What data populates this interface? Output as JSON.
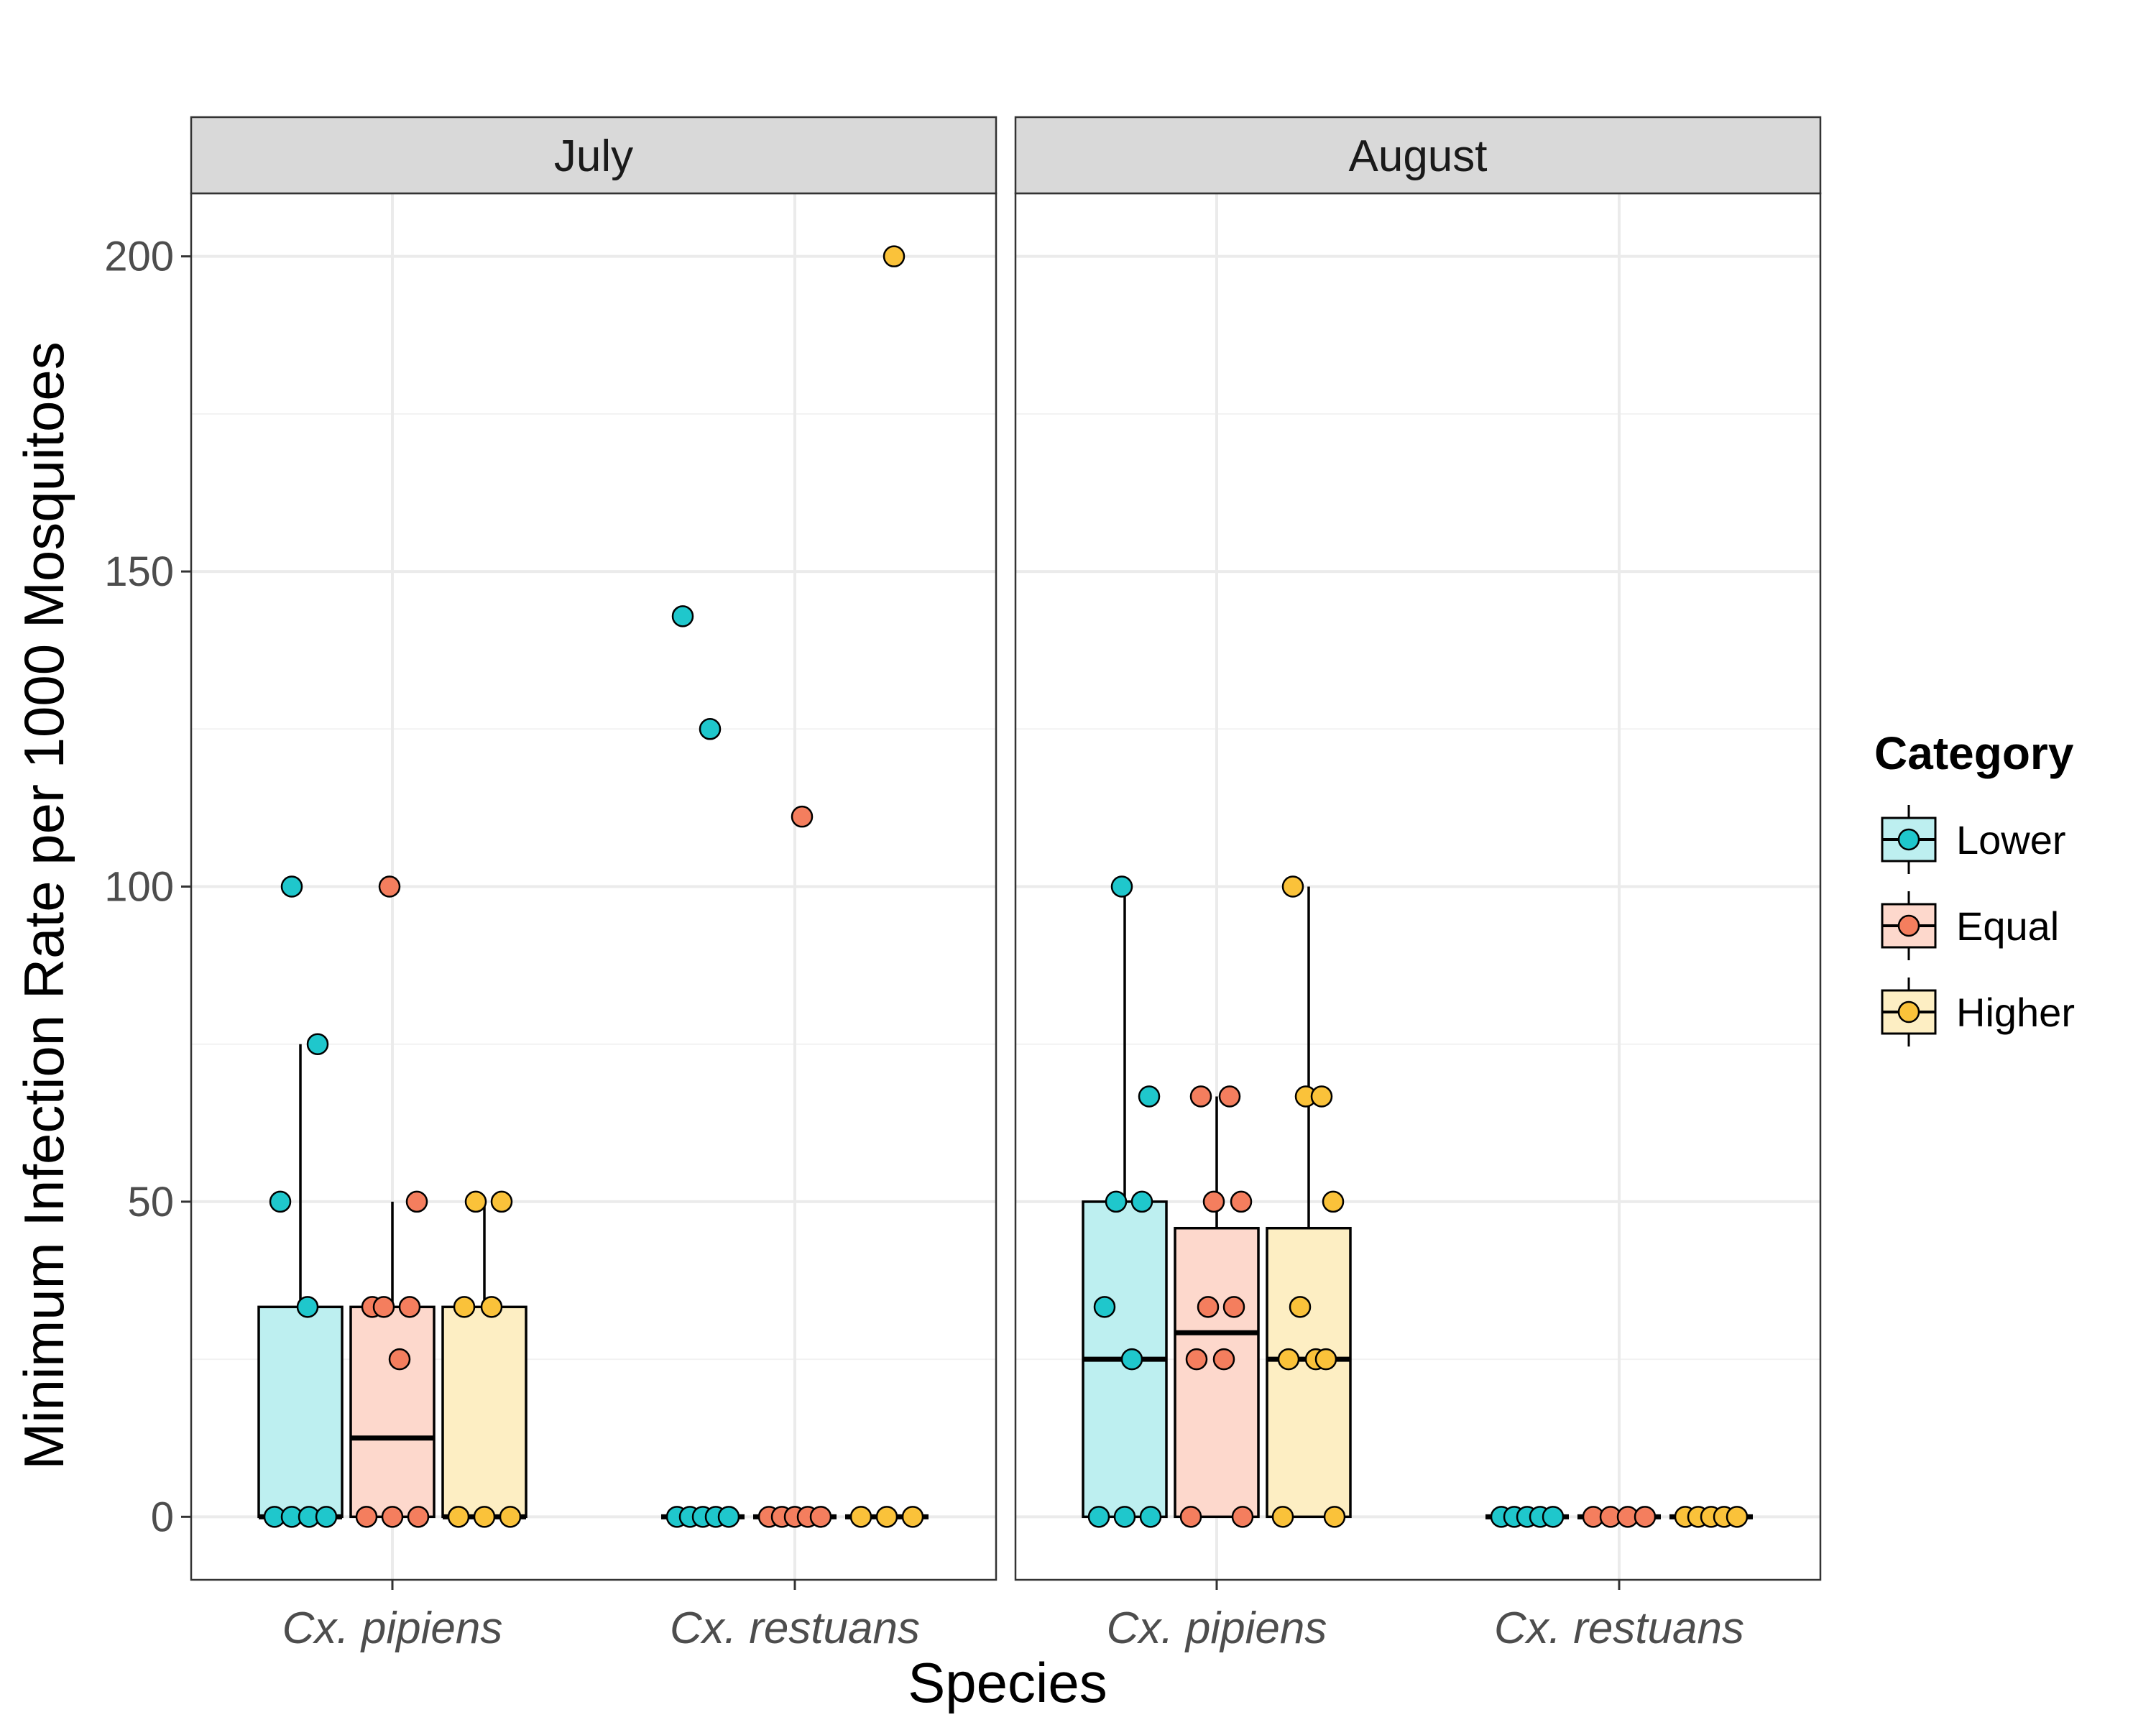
{
  "chart_data": {
    "type": "box",
    "xlabel": "Species",
    "ylabel": "Minimum Infection Rate per 1000 Mosquitoes",
    "ylim": [
      -10,
      210
    ],
    "yticks": [
      0,
      50,
      100,
      150,
      200
    ],
    "grid": true,
    "legend": {
      "title": "Category",
      "placement": "right",
      "entries": [
        {
          "name": "Lower",
          "fill": "#bdeff0",
          "point": "#1fc7cc"
        },
        {
          "name": "Equal",
          "fill": "#fdd8cc",
          "point": "#f47e5e"
        },
        {
          "name": "Higher",
          "fill": "#fdeec3",
          "point": "#fac23a"
        }
      ]
    },
    "species": [
      "Cx. pipiens",
      "Cx. restuans"
    ],
    "panels": [
      {
        "label": "July",
        "groups": [
          {
            "species": "Cx. pipiens",
            "boxes": [
              {
                "category": "Lower",
                "q1": 0,
                "median": 0,
                "q3": 33.3,
                "whisker_low": 0,
                "whisker_high": 75,
                "points": [
                  0,
                  0,
                  0,
                  0,
                  33.3,
                  50,
                  75,
                  100
                ]
              },
              {
                "category": "Equal",
                "q1": 0,
                "median": 12.5,
                "q3": 33.3,
                "whisker_low": 0,
                "whisker_high": 50,
                "points": [
                  0,
                  0,
                  0,
                  25,
                  33.3,
                  33.3,
                  33.3,
                  50,
                  100
                ]
              },
              {
                "category": "Higher",
                "q1": 0,
                "median": 0,
                "q3": 33.3,
                "whisker_low": 0,
                "whisker_high": 50,
                "points": [
                  0,
                  0,
                  0,
                  33.3,
                  33.3,
                  50,
                  50
                ]
              }
            ]
          },
          {
            "species": "Cx. restuans",
            "boxes": [
              {
                "category": "Lower",
                "q1": 0,
                "median": 0,
                "q3": 0,
                "whisker_low": 0,
                "whisker_high": 0,
                "points": [
                  0,
                  0,
                  0,
                  0,
                  0,
                  125,
                  142.9
                ]
              },
              {
                "category": "Equal",
                "q1": 0,
                "median": 0,
                "q3": 0,
                "whisker_low": 0,
                "whisker_high": 0,
                "points": [
                  0,
                  0,
                  0,
                  0,
                  0,
                  111.1
                ]
              },
              {
                "category": "Higher",
                "q1": 0,
                "median": 0,
                "q3": 0,
                "whisker_low": 0,
                "whisker_high": 0,
                "points": [
                  0,
                  0,
                  0,
                  200
                ]
              }
            ]
          }
        ]
      },
      {
        "label": "August",
        "groups": [
          {
            "species": "Cx. pipiens",
            "boxes": [
              {
                "category": "Lower",
                "q1": 0,
                "median": 25,
                "q3": 50,
                "whisker_low": 0,
                "whisker_high": 100,
                "points": [
                  0,
                  0,
                  0,
                  25,
                  33.3,
                  50,
                  50,
                  66.7,
                  100
                ]
              },
              {
                "category": "Equal",
                "q1": 0,
                "median": 29.2,
                "q3": 45.8,
                "whisker_low": 0,
                "whisker_high": 66.7,
                "points": [
                  0,
                  0,
                  25,
                  25,
                  33.3,
                  33.3,
                  50,
                  50,
                  66.7,
                  66.7
                ]
              },
              {
                "category": "Higher",
                "q1": 0,
                "median": 25,
                "q3": 45.8,
                "whisker_low": 0,
                "whisker_high": 100,
                "points": [
                  0,
                  0,
                  25,
                  25,
                  25,
                  33.3,
                  50,
                  66.7,
                  66.7,
                  100
                ]
              }
            ]
          },
          {
            "species": "Cx. restuans",
            "boxes": [
              {
                "category": "Lower",
                "q1": 0,
                "median": 0,
                "q3": 0,
                "whisker_low": 0,
                "whisker_high": 0,
                "points": [
                  0,
                  0,
                  0,
                  0,
                  0
                ]
              },
              {
                "category": "Equal",
                "q1": 0,
                "median": 0,
                "q3": 0,
                "whisker_low": 0,
                "whisker_high": 0,
                "points": [
                  0,
                  0,
                  0,
                  0
                ]
              },
              {
                "category": "Higher",
                "q1": 0,
                "median": 0,
                "q3": 0,
                "whisker_low": 0,
                "whisker_high": 0,
                "points": [
                  0,
                  0,
                  0,
                  0,
                  0
                ]
              }
            ]
          }
        ]
      }
    ]
  }
}
